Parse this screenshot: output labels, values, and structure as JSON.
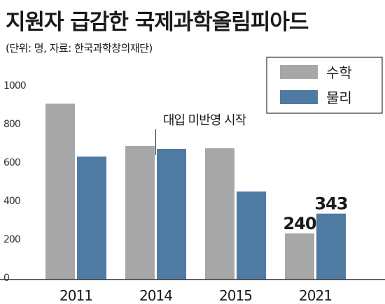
{
  "title": "지원자 급감한 국제과학올림피아드",
  "subtitle": "(단위: 명, 자료: 한국과학창의재단)",
  "colors": {
    "math": "#a7a7a7",
    "physics": "#4f7ba2",
    "axis": "#333333"
  },
  "chart_data": {
    "type": "bar",
    "categories": [
      "2011",
      "2014",
      "2015",
      "2021"
    ],
    "series": [
      {
        "name": "수학",
        "values": [
          915,
          695,
          683,
          240
        ]
      },
      {
        "name": "물리",
        "values": [
          640,
          680,
          458,
          343
        ]
      }
    ],
    "y_ticks": [
      "0",
      "200",
      "400",
      "600",
      "800",
      "1000"
    ],
    "ylim": [
      0,
      1000
    ],
    "legend": "top-right",
    "grid": false,
    "data_labels": [
      "240",
      "343"
    ],
    "annotation": "대입 미반영 시작"
  }
}
